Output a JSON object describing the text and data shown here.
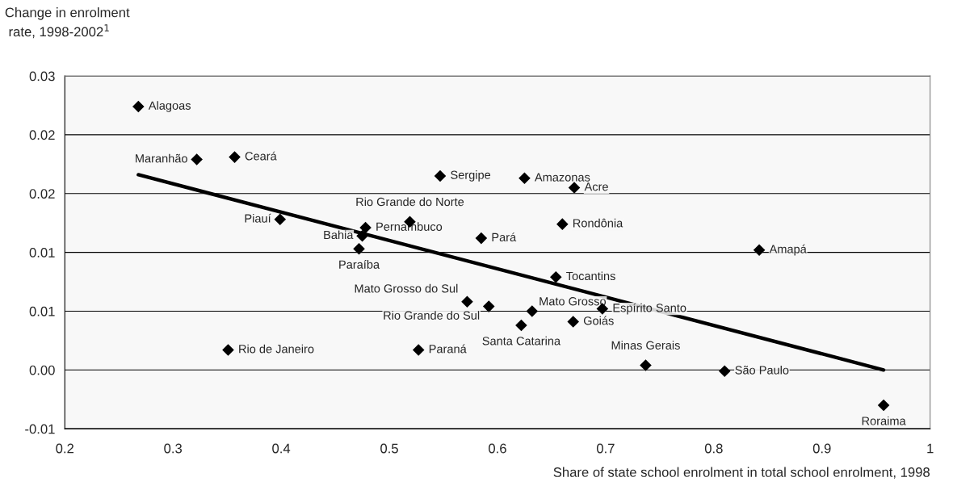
{
  "chart_data": {
    "type": "scatter",
    "ylabel": "Change in enrolment\n rate, 1998-2002$^{1}$",
    "xlabel": "Share of state school enrolment in total school enrolment, 1998",
    "xlim": [
      0.2,
      1
    ],
    "xticks": [
      0.2,
      0.3,
      0.4,
      0.5,
      0.6,
      0.7,
      0.8,
      0.9,
      1
    ],
    "ylim": [
      -0.005,
      0.025
    ],
    "yticks": [
      {
        "value": -0.005,
        "label": "-0.01"
      },
      {
        "value": 0,
        "label": "0.00"
      },
      {
        "value": 0.005,
        "label": "0.01"
      },
      {
        "value": 0.01,
        "label": "0.01"
      },
      {
        "value": 0.015,
        "label": "0.02"
      },
      {
        "value": 0.02,
        "label": "0.02"
      },
      {
        "value": 0.025,
        "label": "0.03"
      }
    ],
    "grid": "y",
    "legend": false,
    "marker": "diamond",
    "series": [
      {
        "color": "#000000",
        "x": [
          0.268,
          0.322,
          0.357,
          0.547,
          0.625,
          0.671,
          0.519,
          0.399,
          0.478,
          0.475,
          0.472,
          0.585,
          0.66,
          0.842,
          0.654,
          0.572,
          0.592,
          0.632,
          0.622,
          0.67,
          0.697,
          0.351,
          0.527,
          0.737,
          0.81,
          0.957
        ],
        "values": [
          0.0224,
          0.0179,
          0.0181,
          0.0165,
          0.0163,
          0.0155,
          0.0126,
          0.0128,
          0.0121,
          0.0114,
          0.0103,
          0.0112,
          0.0124,
          0.0102,
          0.0079,
          0.0058,
          0.0054,
          0.005,
          0.0038,
          0.0041,
          0.0052,
          0.0017,
          0.0017,
          0.0004,
          -0.0001,
          -0.003
        ]
      },
      {
        "type": "line",
        "color": "#000000",
        "marker": "none",
        "x": [
          0.268,
          0.957
        ],
        "values": [
          0.0166,
          0.0
        ]
      }
    ],
    "annotations": [
      {
        "text": "Alagoas",
        "x": 0.268,
        "y": 0.0224
      },
      {
        "text": "Maranhão",
        "x": 0.322,
        "y": 0.0179
      },
      {
        "text": "Ceará",
        "x": 0.357,
        "y": 0.0181
      },
      {
        "text": "Sergipe",
        "x": 0.547,
        "y": 0.0165
      },
      {
        "text": "Amazonas",
        "x": 0.625,
        "y": 0.0163
      },
      {
        "text": "Acre",
        "x": 0.671,
        "y": 0.0155
      },
      {
        "text": "Rio Grande do Norte",
        "x": 0.519,
        "y": 0.0126
      },
      {
        "text": "Piauí",
        "x": 0.399,
        "y": 0.0128
      },
      {
        "text": "Pernambuco",
        "x": 0.478,
        "y": 0.0121
      },
      {
        "text": "Bahia",
        "x": 0.475,
        "y": 0.0114
      },
      {
        "text": "Paraíba",
        "x": 0.472,
        "y": 0.0103
      },
      {
        "text": "Pará",
        "x": 0.585,
        "y": 0.0112
      },
      {
        "text": "Rondônia",
        "x": 0.66,
        "y": 0.0124
      },
      {
        "text": "Amapá",
        "x": 0.842,
        "y": 0.0102
      },
      {
        "text": "Tocantins",
        "x": 0.654,
        "y": 0.0079
      },
      {
        "text": "Mato Grosso do Sul",
        "x": 0.572,
        "y": 0.0058
      },
      {
        "text": "Rio Grande do Sul",
        "x": 0.592,
        "y": 0.0054
      },
      {
        "text": "Mato Grosso",
        "x": 0.632,
        "y": 0.005
      },
      {
        "text": "Santa Catarina",
        "x": 0.622,
        "y": 0.0038
      },
      {
        "text": "Goiás",
        "x": 0.67,
        "y": 0.0041
      },
      {
        "text": "Espírito Santo",
        "x": 0.697,
        "y": 0.0052
      },
      {
        "text": "Rio de Janeiro",
        "x": 0.351,
        "y": 0.0017
      },
      {
        "text": "Paraná",
        "x": 0.527,
        "y": 0.0017
      },
      {
        "text": "Minas Gerais",
        "x": 0.737,
        "y": 0.0004
      },
      {
        "text": "São Paulo",
        "x": 0.81,
        "y": -0.0001
      },
      {
        "text": "Roraima",
        "x": 0.957,
        "y": -0.003
      }
    ]
  }
}
